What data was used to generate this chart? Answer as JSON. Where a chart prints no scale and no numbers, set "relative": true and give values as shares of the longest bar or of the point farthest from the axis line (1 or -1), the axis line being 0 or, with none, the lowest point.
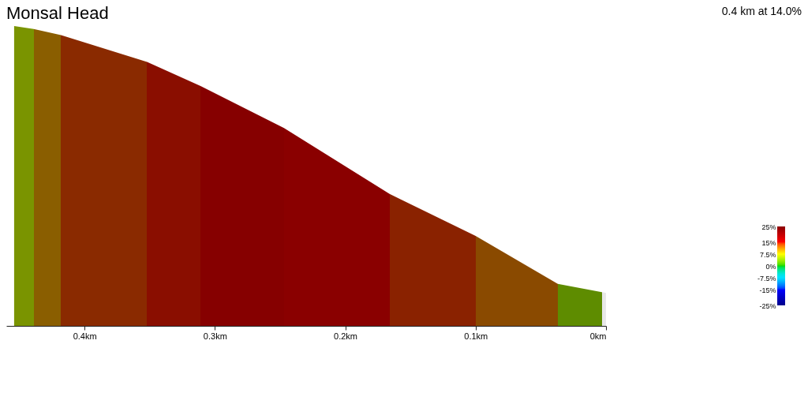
{
  "chart_data": {
    "type": "area",
    "title": "Monsal Head",
    "annotations": [
      "0.4 km at 14.0%"
    ],
    "x": [
      0,
      0.037,
      0.1,
      0.166,
      0.247,
      0.311,
      0.352,
      0.418,
      0.439,
      0.454
    ],
    "values": [
      0.11,
      0.14,
      0.3,
      0.44,
      0.66,
      0.8,
      0.88,
      0.97,
      0.99,
      1
    ],
    "colors": [
      "#e8e8e8",
      "#5e8c00",
      "#8a4a00",
      "#8a2200",
      "#8a0000",
      "#860000",
      "#8a0e00",
      "#8a2a00",
      "#8a5e00",
      "#7a9400"
    ],
    "relative": true,
    "xlim": [
      0.46,
      0
    ],
    "xticks": [
      {
        "value": 0.4,
        "label": "0.4km"
      },
      {
        "value": 0.3,
        "label": "0.3km"
      },
      {
        "value": 0.2,
        "label": "0.2km"
      },
      {
        "value": 0.1,
        "label": "0.1km"
      },
      {
        "value": 0,
        "label": "0km"
      }
    ],
    "clim": [
      -25,
      25
    ],
    "cticks": [
      {
        "value": -25,
        "label": "-25%"
      },
      {
        "value": -15,
        "label": "-15%"
      },
      {
        "value": -7.5,
        "label": "-7.5%"
      },
      {
        "value": 0,
        "label": "0%"
      },
      {
        "value": 7.5,
        "label": "7.5%"
      },
      {
        "value": 15,
        "label": "15%"
      },
      {
        "value": 25,
        "label": "25%"
      }
    ],
    "grid": false
  }
}
